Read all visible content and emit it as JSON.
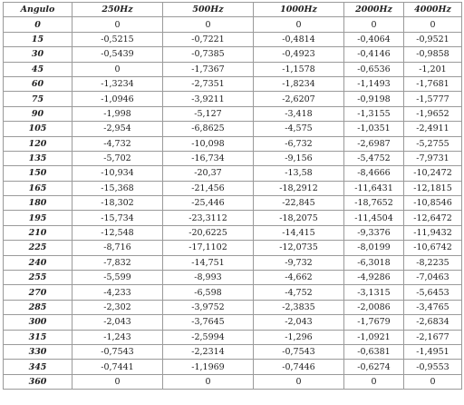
{
  "table": {
    "headers": [
      "Angulo",
      "250Hz",
      "500Hz",
      "1000Hz",
      "2000Hz",
      "4000Hz"
    ],
    "rows": [
      [
        "0",
        "0",
        "0",
        "0",
        "0",
        "0"
      ],
      [
        "15",
        "-0,5215",
        "-0,7221",
        "-0,4814",
        "-0,4064",
        "-0,9521"
      ],
      [
        "30",
        "-0,5439",
        "-0,7385",
        "-0,4923",
        "-0,4146",
        "-0,9858"
      ],
      [
        "45",
        "0",
        "-1,7367",
        "-1,1578",
        "-0,6536",
        "-1,201"
      ],
      [
        "60",
        "-1,3234",
        "-2,7351",
        "-1,8234",
        "-1,1493",
        "-1,7681"
      ],
      [
        "75",
        "-1,0946",
        "-3,9211",
        "-2,6207",
        "-0,9198",
        "-1,5777"
      ],
      [
        "90",
        "-1,998",
        "-5,127",
        "-3,418",
        "-1,3155",
        "-1,9652"
      ],
      [
        "105",
        "-2,954",
        "-6,8625",
        "-4,575",
        "-1,0351",
        "-2,4911"
      ],
      [
        "120",
        "-4,732",
        "-10,098",
        "-6,732",
        "-2,6987",
        "-5,2755"
      ],
      [
        "135",
        "-5,702",
        "-16,734",
        "-9,156",
        "-5,4752",
        "-7,9731"
      ],
      [
        "150",
        "-10,934",
        "-20,37",
        "-13,58",
        "-8,4666",
        "-10,2472"
      ],
      [
        "165",
        "-15,368",
        "-21,456",
        "-18,2912",
        "-11,6431",
        "-12,1815"
      ],
      [
        "180",
        "-18,302",
        "-25,446",
        "-22,845",
        "-18,7652",
        "-10,8546"
      ],
      [
        "195",
        "-15,734",
        "-23,3112",
        "-18,2075",
        "-11,4504",
        "-12,6472"
      ],
      [
        "210",
        "-12,548",
        "-20,6225",
        "-14,415",
        "-9,3376",
        "-11,9432"
      ],
      [
        "225",
        "-8,716",
        "-17,1102",
        "-12,0735",
        "-8,0199",
        "-10,6742"
      ],
      [
        "240",
        "-7,832",
        "-14,751",
        "-9,732",
        "-6,3018",
        "-8,2235"
      ],
      [
        "255",
        "-5,599",
        "-8,993",
        "-4,662",
        "-4,9286",
        "-7,0463"
      ],
      [
        "270",
        "-4,233",
        "-6,598",
        "-4,752",
        "-3,1315",
        "-5,6453"
      ],
      [
        "285",
        "-2,302",
        "-3,9752",
        "-2,3835",
        "-2,0086",
        "-3,4765"
      ],
      [
        "300",
        "-2,043",
        "-3,7645",
        "-2,043",
        "-1,7679",
        "-2,6834"
      ],
      [
        "315",
        "-1,243",
        "-2,5994",
        "-1,296",
        "-1,0921",
        "-2,1677"
      ],
      [
        "330",
        "-0,7543",
        "-2,2314",
        "-0,7543",
        "-0,6381",
        "-1,4951"
      ],
      [
        "345",
        "-0,7441",
        "-1,1969",
        "-0,7446",
        "-0,6274",
        "-0,9553"
      ],
      [
        "360",
        "0",
        "0",
        "0",
        "0",
        "0"
      ]
    ]
  }
}
